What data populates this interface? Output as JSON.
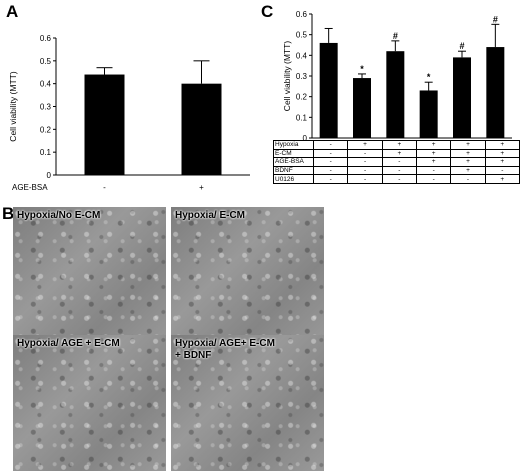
{
  "panels": {
    "a_label": "A",
    "b_label": "B",
    "c_label": "C"
  },
  "chart_data": [
    {
      "type": "bar",
      "ylabel": "Cell viability (MTT)",
      "ylim": [
        0,
        0.6
      ],
      "yticks": [
        "0",
        "0.1",
        "0.2",
        "0.3",
        "0.4",
        "0.5",
        "0.6"
      ],
      "row_label": "AGE-BSA",
      "categories": [
        "-",
        "+"
      ],
      "values": [
        0.44,
        0.4
      ],
      "errors": [
        0.03,
        0.1
      ],
      "color": "#000000"
    },
    {
      "type": "bar",
      "ylabel": "Cell viability (MTT)",
      "ylim": [
        0,
        0.6
      ],
      "yticks": [
        "0",
        "0.1",
        "0.2",
        "0.3",
        "0.4",
        "0.5",
        "0.6"
      ],
      "values": [
        0.46,
        0.29,
        0.42,
        0.23,
        0.39,
        0.44
      ],
      "errors": [
        0.07,
        0.02,
        0.05,
        0.04,
        0.03,
        0.11
      ],
      "significance": [
        "",
        "*",
        "#",
        "*",
        "#",
        "#"
      ],
      "color": "#000000",
      "table": [
        {
          "label": "Hypoxia",
          "values": [
            "-",
            "+",
            "+",
            "+",
            "+",
            "+"
          ]
        },
        {
          "label": "E-CM",
          "values": [
            "-",
            "-",
            "+",
            "+",
            "+",
            "+"
          ]
        },
        {
          "label": "AGE-BSA",
          "values": [
            "-",
            "-",
            "-",
            "+",
            "+",
            "+"
          ]
        },
        {
          "label": "BDNF",
          "values": [
            "-",
            "-",
            "-",
            "-",
            "+",
            "-"
          ]
        },
        {
          "label": "U0126",
          "values": [
            "-",
            "-",
            "-",
            "-",
            "-",
            "+"
          ]
        }
      ]
    }
  ],
  "micrographs": [
    {
      "caption": "Hypoxia/No E-CM"
    },
    {
      "caption": "Hypoxia/ E-CM"
    },
    {
      "caption": "Hypoxia/ AGE + E-CM"
    },
    {
      "caption": "Hypoxia/ AGE+ E-CM\n+ BDNF"
    }
  ]
}
